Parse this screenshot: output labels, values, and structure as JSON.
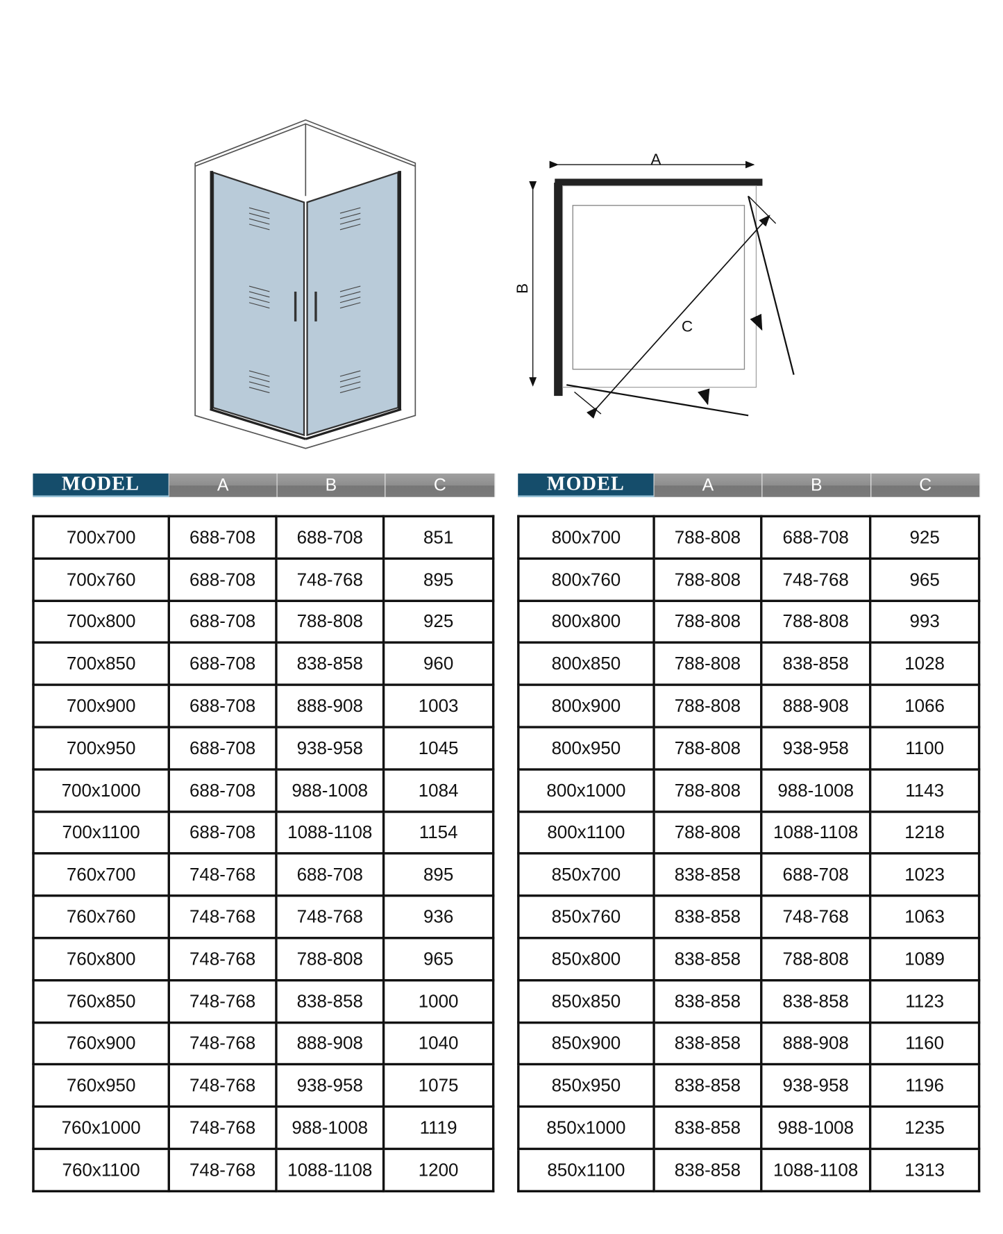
{
  "diagram_labels": {
    "a": "A",
    "b": "B",
    "c": "C"
  },
  "colors": {
    "model_header": "#154d6b",
    "col_header": "#888888",
    "glass": "#b9cbd9"
  },
  "headers": [
    "MODEL",
    "A",
    "B",
    "C"
  ],
  "left_table": [
    [
      "700x700",
      "688-708",
      "688-708",
      "851"
    ],
    [
      "700x760",
      "688-708",
      "748-768",
      "895"
    ],
    [
      "700x800",
      "688-708",
      "788-808",
      "925"
    ],
    [
      "700x850",
      "688-708",
      "838-858",
      "960"
    ],
    [
      "700x900",
      "688-708",
      "888-908",
      "1003"
    ],
    [
      "700x950",
      "688-708",
      "938-958",
      "1045"
    ],
    [
      "700x1000",
      "688-708",
      "988-1008",
      "1084"
    ],
    [
      "700x1100",
      "688-708",
      "1088-1108",
      "1154"
    ],
    [
      "760x700",
      "748-768",
      "688-708",
      "895"
    ],
    [
      "760x760",
      "748-768",
      "748-768",
      "936"
    ],
    [
      "760x800",
      "748-768",
      "788-808",
      "965"
    ],
    [
      "760x850",
      "748-768",
      "838-858",
      "1000"
    ],
    [
      "760x900",
      "748-768",
      "888-908",
      "1040"
    ],
    [
      "760x950",
      "748-768",
      "938-958",
      "1075"
    ],
    [
      "760x1000",
      "748-768",
      "988-1008",
      "1119"
    ],
    [
      "760x1100",
      "748-768",
      "1088-1108",
      "1200"
    ]
  ],
  "right_table": [
    [
      "800x700",
      "788-808",
      "688-708",
      "925"
    ],
    [
      "800x760",
      "788-808",
      "748-768",
      "965"
    ],
    [
      "800x800",
      "788-808",
      "788-808",
      "993"
    ],
    [
      "800x850",
      "788-808",
      "838-858",
      "1028"
    ],
    [
      "800x900",
      "788-808",
      "888-908",
      "1066"
    ],
    [
      "800x950",
      "788-808",
      "938-958",
      "1100"
    ],
    [
      "800x1000",
      "788-808",
      "988-1008",
      "1143"
    ],
    [
      "800x1100",
      "788-808",
      "1088-1108",
      "1218"
    ],
    [
      "850x700",
      "838-858",
      "688-708",
      "1023"
    ],
    [
      "850x760",
      "838-858",
      "748-768",
      "1063"
    ],
    [
      "850x800",
      "838-858",
      "788-808",
      "1089"
    ],
    [
      "850x850",
      "838-858",
      "838-858",
      "1123"
    ],
    [
      "850x900",
      "838-858",
      "888-908",
      "1160"
    ],
    [
      "850x950",
      "838-858",
      "938-958",
      "1196"
    ],
    [
      "850x1000",
      "838-858",
      "988-1008",
      "1235"
    ],
    [
      "850x1100",
      "838-858",
      "1088-1108",
      "1313"
    ]
  ]
}
